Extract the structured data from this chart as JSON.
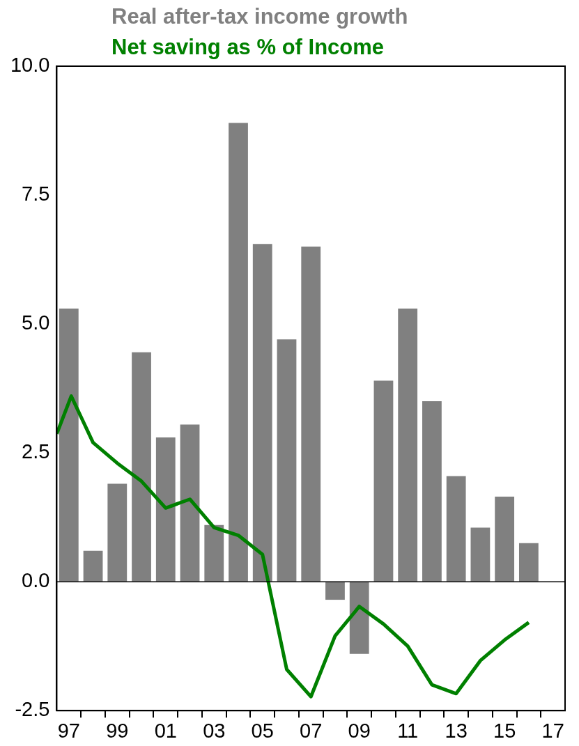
{
  "chart_data": {
    "type": "bar",
    "legend": "top",
    "grid": false,
    "xlim": [
      1996.5,
      2017.5
    ],
    "xticks": [
      {
        "value": 1997,
        "label": "97"
      },
      {
        "value": 1997.5,
        "label": null
      },
      {
        "value": 1998.5,
        "label": null
      },
      {
        "value": 1999,
        "label": "99"
      },
      {
        "value": 1999.5,
        "label": null
      },
      {
        "value": 2000.5,
        "label": null
      },
      {
        "value": 2001,
        "label": "01"
      },
      {
        "value": 2001.5,
        "label": null
      },
      {
        "value": 2002.5,
        "label": null
      },
      {
        "value": 2003,
        "label": "03"
      },
      {
        "value": 2003.5,
        "label": null
      },
      {
        "value": 2004.5,
        "label": null
      },
      {
        "value": 2005,
        "label": "05"
      },
      {
        "value": 2005.5,
        "label": null
      },
      {
        "value": 2006.5,
        "label": null
      },
      {
        "value": 2007,
        "label": "07"
      },
      {
        "value": 2007.5,
        "label": null
      },
      {
        "value": 2008.5,
        "label": null
      },
      {
        "value": 2009,
        "label": "09"
      },
      {
        "value": 2009.5,
        "label": null
      },
      {
        "value": 2010.5,
        "label": null
      },
      {
        "value": 2011,
        "label": "11"
      },
      {
        "value": 2011.5,
        "label": null
      },
      {
        "value": 2012.5,
        "label": null
      },
      {
        "value": 2013,
        "label": "13"
      },
      {
        "value": 2013.5,
        "label": null
      },
      {
        "value": 2014.5,
        "label": null
      },
      {
        "value": 2015,
        "label": "15"
      },
      {
        "value": 2015.5,
        "label": null
      },
      {
        "value": 2016.5,
        "label": null
      },
      {
        "value": 2017,
        "label": "17"
      }
    ],
    "ylim": [
      -2.5,
      10
    ],
    "yticks": [
      {
        "value": -2.5,
        "label": "-2.5"
      },
      {
        "value": 0,
        "label": "0.0"
      },
      {
        "value": 2.5,
        "label": "2.5"
      },
      {
        "value": 5,
        "label": "5.0"
      },
      {
        "value": 7.5,
        "label": "7.5"
      },
      {
        "value": 10,
        "label": "10.0"
      }
    ],
    "ref_lines": [
      {
        "axis": "y",
        "value": 0,
        "color": "#000000"
      }
    ],
    "series": [
      {
        "name": "Real after-tax income growth",
        "color": "#808080",
        "x": [
          1997,
          1998,
          1999,
          2000,
          2001,
          2002,
          2003,
          2004,
          2005,
          2006,
          2007,
          2008,
          2009,
          2010,
          2011,
          2012,
          2013,
          2014,
          2015,
          2016
        ],
        "values": [
          5.3,
          0.6,
          1.9,
          4.45,
          2.8,
          3.05,
          1.1,
          8.9,
          6.55,
          4.7,
          6.5,
          -0.35,
          -1.4,
          3.9,
          5.3,
          3.5,
          2.05,
          1.05,
          1.65,
          0.75
        ]
      },
      {
        "name": "Net saving as % of Income",
        "type": "line",
        "color": "#008000",
        "line_style": "solid",
        "marker": "none",
        "x": [
          1996.5,
          1997.1,
          1998,
          1999,
          2000,
          2001,
          2002,
          2003,
          2004,
          2005,
          2006,
          2007,
          2008,
          2009,
          2010,
          2011,
          2012,
          2013,
          2014,
          2015,
          2016
        ],
        "values": [
          2.87,
          3.6,
          2.7,
          2.3,
          1.95,
          1.43,
          1.6,
          1.05,
          0.9,
          0.53,
          -1.7,
          -2.23,
          -1.05,
          -0.48,
          -0.82,
          -1.25,
          -2.0,
          -2.17,
          -1.53,
          -1.13,
          -0.79
        ]
      }
    ]
  }
}
